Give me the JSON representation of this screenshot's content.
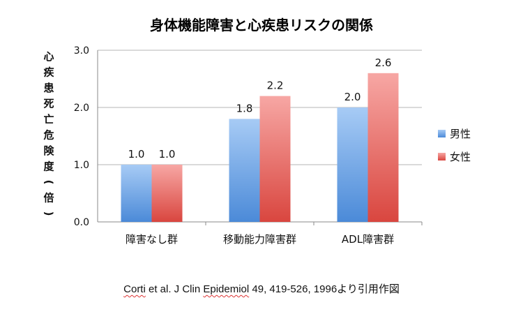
{
  "chart_data": {
    "type": "bar",
    "title": "身体機能障害と心疾患リスクの関係",
    "ylabel": "心疾患死亡危険度(倍)",
    "xlabel": "",
    "categories": [
      "障害なし群",
      "移動能力障害群",
      "ADL障害群"
    ],
    "series": [
      {
        "name": "男性",
        "values": [
          1.0,
          1.8,
          2.0
        ],
        "color": "#5b9bd5"
      },
      {
        "name": "女性",
        "values": [
          1.0,
          2.2,
          2.6
        ],
        "color": "#e46661"
      }
    ],
    "ylim": [
      0,
      3.0
    ],
    "yticks": [
      "0.0",
      "1.0",
      "2.0",
      "3.0"
    ],
    "data_labels": [
      [
        "1.0",
        "1.8",
        "2.0"
      ],
      [
        "1.0",
        "2.2",
        "2.6"
      ]
    ],
    "grid": true,
    "legend": "right"
  },
  "caption": {
    "prefix": "",
    "author": "Corti",
    "middle": " et al. J Clin ",
    "journal": "Epidemiol",
    "suffix": " 49, 419-526, 1996より引用作図"
  }
}
